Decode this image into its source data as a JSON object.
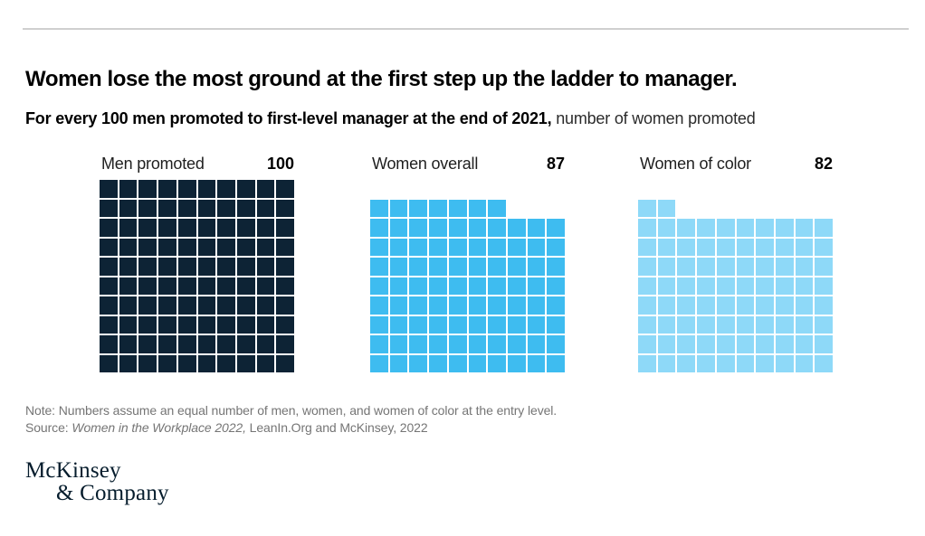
{
  "header": {
    "title": "Women lose the most ground at the first step up the ladder to manager.",
    "subtitle_bold": "For every 100 men promoted to first-level manager at the end of 2021,",
    "subtitle_rest": " number of women promoted"
  },
  "chart_data": {
    "type": "waffle",
    "title": "Women lose the most ground at the first step up the ladder to manager.",
    "subtitle": "For every 100 men promoted to first-level manager at the end of 2021, number of women promoted",
    "grid": {
      "columns": 10,
      "rows": 10,
      "unit_total": 100,
      "gap_color": "#ffffff",
      "partial_row_alignment": "top-left"
    },
    "series": [
      {
        "label": "Men promoted",
        "value": 100,
        "color": "#0d2335"
      },
      {
        "label": "Women overall",
        "value": 87,
        "color": "#3ebcf0"
      },
      {
        "label": "Women of color",
        "value": 82,
        "color": "#8ed9f8"
      }
    ],
    "legend_position": "above-each-grid",
    "values_shown_as_bold_numbers": [
      "100",
      "87",
      "82"
    ]
  },
  "footer": {
    "note": "Note: Numbers assume an equal number of men, women, and women of color at the entry level.",
    "source_prefix": "Source: ",
    "source_italic": "Women in the Workplace 2022,",
    "source_rest": " LeanIn.Org and McKinsey, 2022"
  },
  "logo": {
    "line1": "McKinsey",
    "line2": "& Company",
    "color": "#051c2c"
  },
  "divider_color": "#cfcfcf"
}
